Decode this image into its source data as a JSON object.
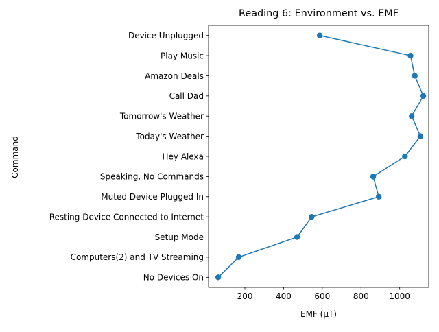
{
  "chart_data": {
    "type": "line",
    "title": "Reading 6: Environment vs. EMF",
    "xlabel": "EMF (µT)",
    "ylabel": "Command",
    "xlim": [
      12,
      1150
    ],
    "xticks": [
      200,
      400,
      600,
      800,
      1000
    ],
    "grid": false,
    "line_color": "#1f77b4",
    "series": [
      {
        "points": [
          {
            "command": "No Devices On",
            "emf": 62
          },
          {
            "command": "Computers(2) and TV Streaming",
            "emf": 168
          },
          {
            "command": "Setup Mode",
            "emf": 470
          },
          {
            "command": "Resting Device Connected to Internet",
            "emf": 545
          },
          {
            "command": "Muted Device Plugged In",
            "emf": 892
          },
          {
            "command": "Speaking, No Commands",
            "emf": 863
          },
          {
            "command": "Hey Alexa",
            "emf": 1027
          },
          {
            "command": "Today's Weather",
            "emf": 1107
          },
          {
            "command": "Tomorrow's Weather",
            "emf": 1062
          },
          {
            "command": "Call Dad",
            "emf": 1122
          },
          {
            "command": "Amazon Deals",
            "emf": 1078
          },
          {
            "command": "Play Music",
            "emf": 1056
          },
          {
            "command": "Device Unplugged",
            "emf": 587
          }
        ]
      }
    ]
  }
}
